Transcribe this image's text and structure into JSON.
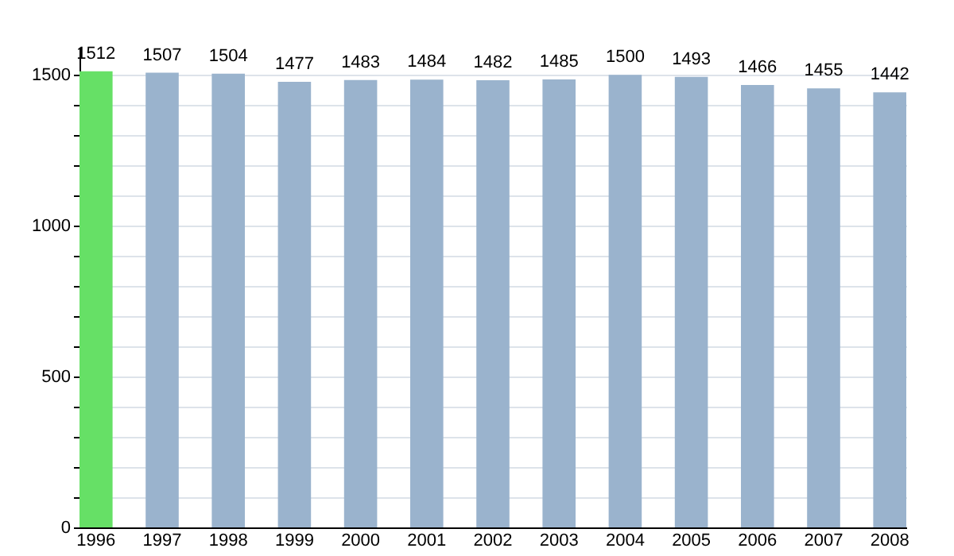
{
  "chart_data": {
    "type": "bar",
    "categories": [
      "1996",
      "1997",
      "1998",
      "1999",
      "2000",
      "2001",
      "2002",
      "2003",
      "2004",
      "2005",
      "2006",
      "2007",
      "2008"
    ],
    "values": [
      1512,
      1507,
      1504,
      1477,
      1483,
      1484,
      1482,
      1485,
      1500,
      1493,
      1466,
      1455,
      1442
    ],
    "colors": [
      "#66e066",
      "#9ab3cd",
      "#9ab3cd",
      "#9ab3cd",
      "#9ab3cd",
      "#9ab3cd",
      "#9ab3cd",
      "#9ab3cd",
      "#9ab3cd",
      "#9ab3cd",
      "#9ab3cd",
      "#9ab3cd",
      "#9ab3cd"
    ],
    "ylim": [
      0,
      1590
    ],
    "yticks": [
      0,
      {
        "value": 100,
        "label": null
      },
      {
        "value": 200,
        "label": null
      },
      {
        "value": 300,
        "label": null
      },
      {
        "value": 400,
        "label": null
      },
      500,
      {
        "value": 600,
        "label": null
      },
      {
        "value": 700,
        "label": null
      },
      {
        "value": 800,
        "label": null
      },
      {
        "value": 900,
        "label": null
      },
      1000,
      {
        "value": 1100,
        "label": null
      },
      {
        "value": 1200,
        "label": null
      },
      {
        "value": 1300,
        "label": null
      },
      {
        "value": 1400,
        "label": null
      },
      1500
    ],
    "grid": true,
    "data_labels": true
  }
}
